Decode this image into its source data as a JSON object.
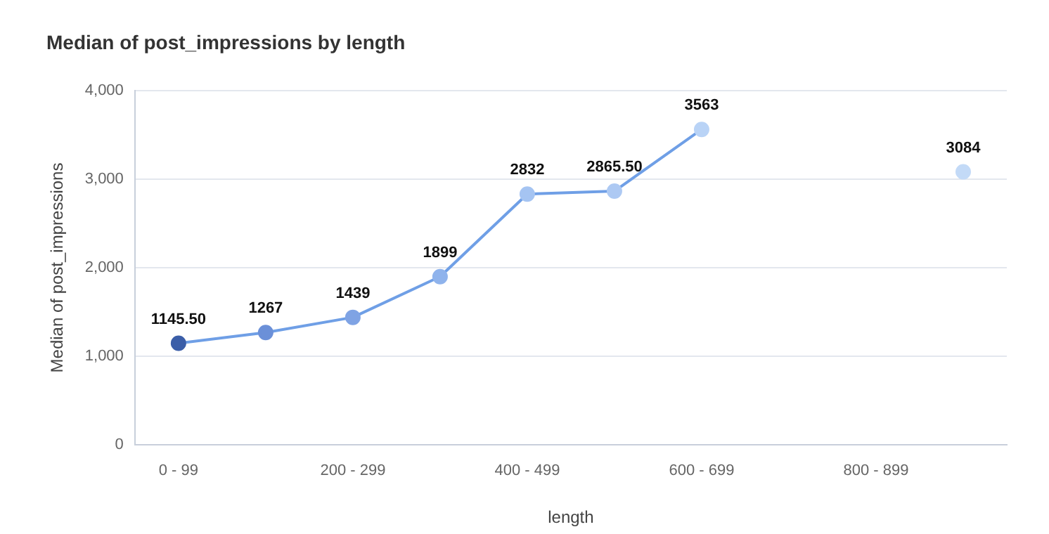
{
  "chart_data": {
    "type": "line",
    "title": "Median of post_impressions by length",
    "xlabel": "length",
    "ylabel": "Median of post_impressions",
    "categories": [
      "0 - 99",
      null,
      "200 - 299",
      null,
      "400 - 499",
      null,
      "600 - 699",
      null,
      "800 - 899",
      null
    ],
    "series": [
      {
        "color": "#6f9fe6",
        "colors": [
          "#3b5ea8",
          "#6b90d8",
          "#7fa3e4",
          "#8fb3ec",
          "#a5c4f2",
          "#adc9f3",
          "#b9d3f6",
          null,
          null,
          "#c3daf7"
        ],
        "values": [
          1145.5,
          1267,
          1439,
          1899,
          2832,
          2865.5,
          3563,
          null,
          null,
          3084
        ],
        "value_labels": [
          "1145.50",
          "1267",
          "1439",
          "1899",
          "2832",
          "2865.50",
          "3563",
          null,
          null,
          "3084"
        ]
      }
    ],
    "ylim": [
      0,
      4000
    ],
    "yticks": [
      0,
      {
        "value": 1000,
        "label": "1,000"
      },
      {
        "value": 2000,
        "label": "2,000"
      },
      {
        "value": 3000,
        "label": "3,000"
      },
      {
        "value": 4000,
        "label": "4,000"
      }
    ],
    "grid": "y",
    "marker": "circle",
    "line_style": "solid",
    "legend": false
  }
}
